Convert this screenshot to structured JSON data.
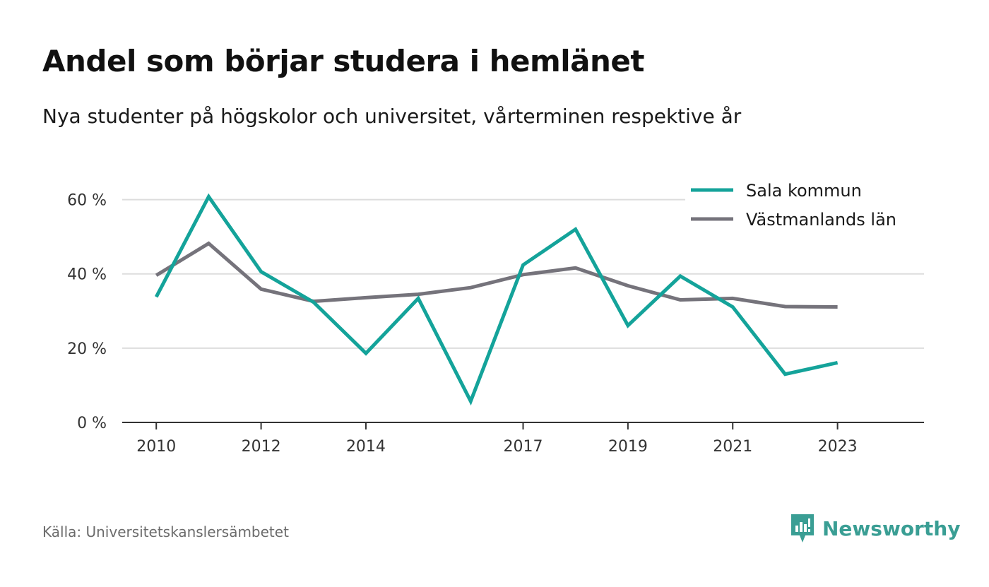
{
  "header": {
    "title": "Andel som börjar studera i hemlänet",
    "subtitle": "Nya studenter på högskolor och universitet, vårterminen respektive år"
  },
  "chart_data": {
    "type": "line",
    "x": [
      2010,
      2011,
      2012,
      2013,
      2014,
      2015,
      2016,
      2017,
      2018,
      2019,
      2020,
      2021,
      2022,
      2023
    ],
    "x_tick_labels": [
      "2010",
      "2012",
      "2014",
      "2017",
      "2019",
      "2021",
      "2023"
    ],
    "y_tick_labels": [
      "0 %",
      "20 %",
      "40 %",
      "60 %"
    ],
    "y_ticks": [
      0,
      20,
      40,
      60
    ],
    "ylim": [
      0,
      70
    ],
    "xlim": [
      2009.35,
      2024.65
    ],
    "grid": true,
    "legend_position": "top-right",
    "series": [
      {
        "name": "Sala kommun",
        "color": "#14a39a",
        "values": [
          33.8,
          60.8,
          40.6,
          32.4,
          18.6,
          33.4,
          5.7,
          42.4,
          52.0,
          26.1,
          39.4,
          31.1,
          13.0,
          16.1
        ]
      },
      {
        "name": "Västmanlands län",
        "color": "#75737b",
        "values": [
          39.6,
          48.2,
          35.9,
          32.6,
          33.6,
          34.5,
          36.3,
          39.8,
          41.6,
          36.8,
          33.0,
          33.4,
          31.2,
          31.1
        ]
      }
    ]
  },
  "footer": {
    "source": "Källa: Universitetskanslersämbetet",
    "brand": "Newsworthy",
    "brand_icon": "newsworthy-logo-icon",
    "brand_color": "#3a9e94"
  }
}
